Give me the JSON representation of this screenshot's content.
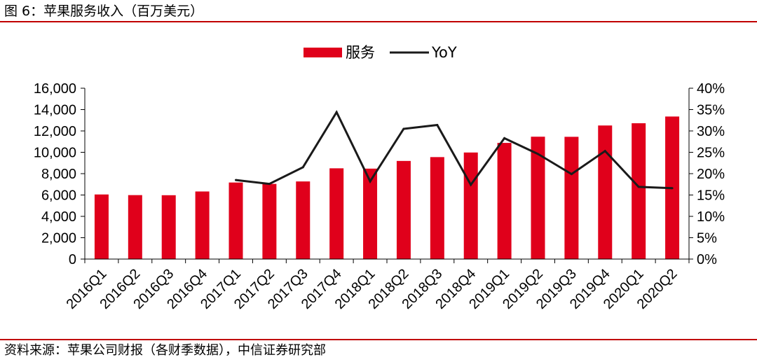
{
  "header": {
    "title": "图 6：苹果服务收入（百万美元）"
  },
  "footer": {
    "source": "资料来源：苹果公司财报（各财季数据），中信证券研究部"
  },
  "colors": {
    "bar": "#e0001b",
    "line": "#1a1a1a",
    "rule": "#c00000"
  },
  "chart_data": {
    "type": "bar",
    "title": "图 6：苹果服务收入（百万美元）",
    "categories": [
      "2016Q1",
      "2016Q2",
      "2016Q3",
      "2016Q4",
      "2017Q1",
      "2017Q2",
      "2017Q3",
      "2017Q4",
      "2018Q1",
      "2018Q2",
      "2018Q3",
      "2018Q4",
      "2019Q1",
      "2019Q2",
      "2019Q3",
      "2019Q4",
      "2020Q1",
      "2020Q2"
    ],
    "series": [
      {
        "name": "服务",
        "type": "bar",
        "axis": "left",
        "values": [
          6050,
          5990,
          5980,
          6330,
          7170,
          7040,
          7270,
          8500,
          8470,
          9190,
          9550,
          9980,
          10880,
          11460,
          11450,
          12510,
          12720,
          13350
        ]
      },
      {
        "name": "YoY",
        "type": "line",
        "axis": "right",
        "values": [
          null,
          null,
          null,
          null,
          18.5,
          17.6,
          21.5,
          34.4,
          18.2,
          30.5,
          31.4,
          17.4,
          28.3,
          24.6,
          19.9,
          25.3,
          16.9,
          16.6
        ]
      }
    ],
    "y_left": {
      "ylim": [
        0,
        16000
      ],
      "ticks": [
        "0",
        "2,000",
        "4,000",
        "6,000",
        "8,000",
        "10,000",
        "12,000",
        "14,000",
        "16,000"
      ]
    },
    "y_right": {
      "ylim": [
        0,
        40
      ],
      "ticks": [
        "0%",
        "5%",
        "10%",
        "15%",
        "20%",
        "25%",
        "30%",
        "35%",
        "40%"
      ]
    },
    "legend": {
      "position": "top-center",
      "items": [
        "服务",
        "YoY"
      ]
    },
    "grid": false
  }
}
